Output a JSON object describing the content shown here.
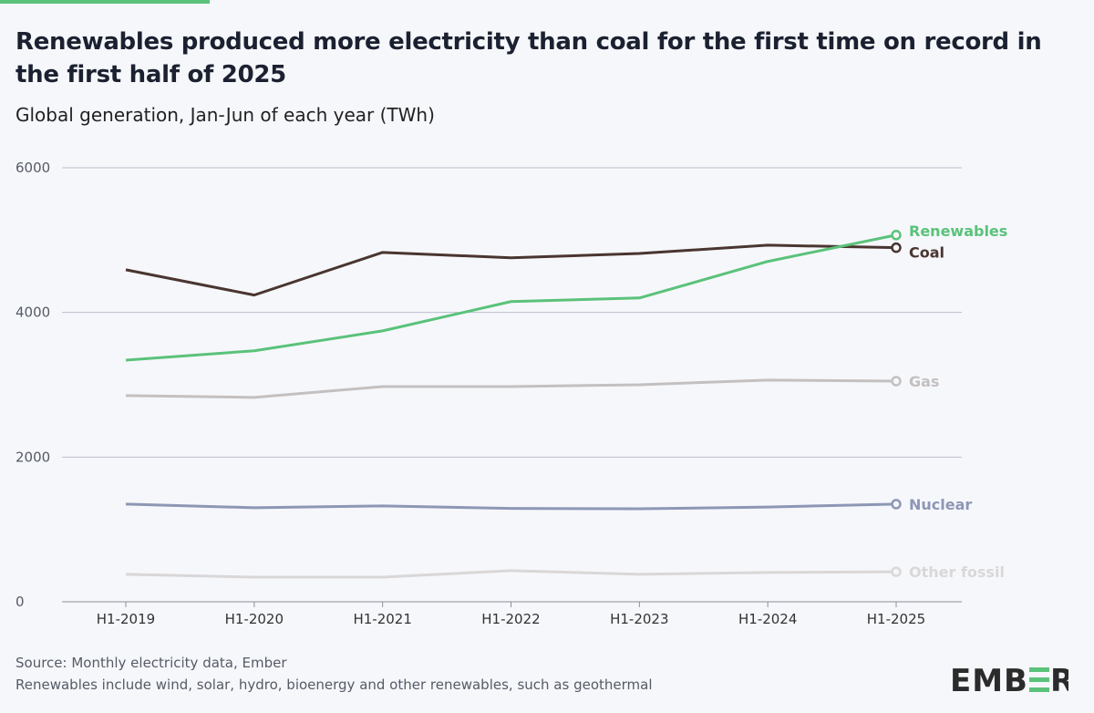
{
  "title": "Renewables produced more electricity than coal for the first time on record in the first half of 2025",
  "subtitle": "Global generation, Jan-Jun of each year (TWh)",
  "footer": {
    "source": "Source: Monthly electricity data, Ember",
    "note": "Renewables include wind, solar, hydro, bioenergy and other renewables, such as geothermal"
  },
  "logo": {
    "text": "EMBER",
    "color": "#2b2b2b",
    "accent": "#5ac27a"
  },
  "chart_data": {
    "type": "line",
    "title": "",
    "xlabel": "",
    "ylabel": "",
    "categories": [
      "H1-2019",
      "H1-2020",
      "H1-2021",
      "H1-2022",
      "H1-2023",
      "H1-2024",
      "H1-2025"
    ],
    "ylim": [
      0,
      6000
    ],
    "yticks": [
      0,
      2000,
      4000,
      6000
    ],
    "grid": true,
    "legend": "end-of-line labels",
    "series": [
      {
        "name": "Renewables",
        "color": "#5ac27a",
        "values": [
          3340,
          3470,
          3745,
          4150,
          4200,
          4705,
          5070
        ]
      },
      {
        "name": "Coal",
        "color": "#4a3530",
        "values": [
          4590,
          4240,
          4830,
          4755,
          4815,
          4930,
          4895
        ]
      },
      {
        "name": "Gas",
        "color": "#c4c0c0",
        "values": [
          2850,
          2825,
          2975,
          2975,
          3000,
          3065,
          3050
        ]
      },
      {
        "name": "Nuclear",
        "color": "#8d97b5",
        "values": [
          1350,
          1300,
          1325,
          1290,
          1285,
          1310,
          1350
        ]
      },
      {
        "name": "Other fossil",
        "color": "#d9d7d7",
        "values": [
          380,
          340,
          340,
          430,
          380,
          405,
          415
        ]
      }
    ]
  }
}
